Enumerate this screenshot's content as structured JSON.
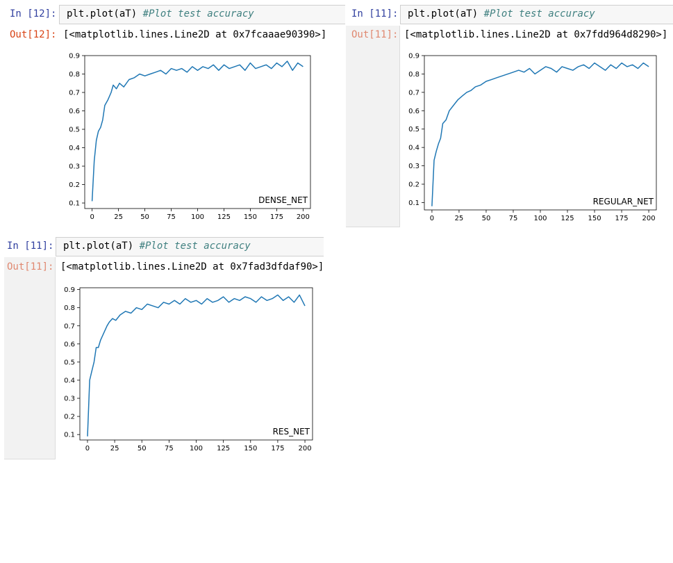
{
  "cells": [
    {
      "in_prompt": "In [12]:",
      "out_prompt": "Out[12]:",
      "out_color": "#d84315",
      "code": "plt.plot(aT) ",
      "comment": "#Plot test accuracy",
      "output": "[<matplotlib.lines.Line2D at 0x7fcaaae90390>]"
    },
    {
      "in_prompt": "In [11]:",
      "out_prompt": "Out[11]:",
      "out_color": "#e08870",
      "code": "plt.plot(aT) ",
      "comment": "#Plot test accuracy",
      "output": "[<matplotlib.lines.Line2D at 0x7fdd964d8290>]"
    },
    {
      "in_prompt": "In [11]:",
      "out_prompt": "Out[11]:",
      "out_color": "#e08870",
      "code": "plt.plot(aT) ",
      "comment": "#Plot test accuracy",
      "output": "[<matplotlib.lines.Line2D at 0x7fad3dfdaf90>]"
    }
  ],
  "chart_data": [
    {
      "type": "line",
      "annotation": "DENSE_NET",
      "line_color": "#1f77b4",
      "xlim": [
        -7,
        207
      ],
      "ylim": [
        0.07,
        0.9
      ],
      "xticks": [
        0,
        25,
        50,
        75,
        100,
        125,
        150,
        175,
        200
      ],
      "yticks": [
        0.1,
        0.2,
        0.3,
        0.4,
        0.5,
        0.6,
        0.7,
        0.8,
        0.9
      ],
      "ytick_labels": [
        "0.1",
        "0.2",
        "0.3",
        "0.4",
        "0.5",
        "0.6",
        "0.7",
        "0.8",
        "0.9"
      ],
      "series": [
        {
          "x": [
            0,
            2,
            4,
            6,
            8,
            10,
            12,
            15,
            18,
            20,
            23,
            26,
            30,
            35,
            40,
            45,
            50,
            55,
            60,
            65,
            70,
            75,
            80,
            85,
            90,
            95,
            100,
            105,
            110,
            115,
            120,
            125,
            130,
            135,
            140,
            145,
            150,
            155,
            160,
            165,
            170,
            175,
            180,
            185,
            190,
            195,
            200
          ],
          "values": [
            0.11,
            0.33,
            0.44,
            0.49,
            0.51,
            0.55,
            0.63,
            0.66,
            0.7,
            0.74,
            0.72,
            0.75,
            0.73,
            0.77,
            0.78,
            0.8,
            0.79,
            0.8,
            0.81,
            0.82,
            0.8,
            0.83,
            0.82,
            0.83,
            0.81,
            0.84,
            0.82,
            0.84,
            0.83,
            0.85,
            0.82,
            0.85,
            0.83,
            0.84,
            0.85,
            0.82,
            0.86,
            0.83,
            0.84,
            0.85,
            0.83,
            0.86,
            0.84,
            0.87,
            0.82,
            0.86,
            0.84
          ]
        }
      ]
    },
    {
      "type": "line",
      "annotation": "REGULAR_NET",
      "line_color": "#1f77b4",
      "xlim": [
        -7,
        207
      ],
      "ylim": [
        0.06,
        0.9
      ],
      "xticks": [
        0,
        25,
        50,
        75,
        100,
        125,
        150,
        175,
        200
      ],
      "yticks": [
        0.1,
        0.2,
        0.3,
        0.4,
        0.5,
        0.6,
        0.7,
        0.8,
        0.9
      ],
      "ytick_labels": [
        "0.1",
        "0.2",
        "0.3",
        "0.4",
        "0.5",
        "0.6",
        "0.7",
        "0.8",
        "0.9"
      ],
      "series": [
        {
          "x": [
            0,
            2,
            4,
            6,
            8,
            10,
            13,
            16,
            20,
            24,
            28,
            32,
            36,
            40,
            45,
            50,
            55,
            60,
            65,
            70,
            75,
            80,
            85,
            90,
            95,
            100,
            105,
            110,
            115,
            120,
            125,
            130,
            135,
            140,
            145,
            150,
            155,
            160,
            165,
            170,
            175,
            180,
            185,
            190,
            195,
            200
          ],
          "values": [
            0.08,
            0.33,
            0.38,
            0.42,
            0.45,
            0.53,
            0.55,
            0.6,
            0.63,
            0.66,
            0.68,
            0.7,
            0.71,
            0.73,
            0.74,
            0.76,
            0.77,
            0.78,
            0.79,
            0.8,
            0.81,
            0.82,
            0.81,
            0.83,
            0.8,
            0.82,
            0.84,
            0.83,
            0.81,
            0.84,
            0.83,
            0.82,
            0.84,
            0.85,
            0.83,
            0.86,
            0.84,
            0.82,
            0.85,
            0.83,
            0.86,
            0.84,
            0.85,
            0.83,
            0.86,
            0.84
          ]
        }
      ]
    },
    {
      "type": "line",
      "annotation": "RES_NET",
      "line_color": "#1f77b4",
      "xlim": [
        -7,
        207
      ],
      "ylim": [
        0.07,
        0.91
      ],
      "xticks": [
        0,
        25,
        50,
        75,
        100,
        125,
        150,
        175,
        200
      ],
      "yticks": [
        0.1,
        0.2,
        0.3,
        0.4,
        0.5,
        0.6,
        0.7,
        0.8,
        0.9
      ],
      "ytick_labels": [
        "0.1",
        "0.2",
        "0.3",
        "0.4",
        "0.5",
        "0.6",
        "0.7",
        "0.8",
        "0.9"
      ],
      "series": [
        {
          "x": [
            0,
            2,
            4,
            6,
            8,
            10,
            12,
            15,
            18,
            20,
            23,
            26,
            30,
            35,
            40,
            45,
            50,
            55,
            60,
            65,
            70,
            75,
            80,
            85,
            90,
            95,
            100,
            105,
            110,
            115,
            120,
            125,
            130,
            135,
            140,
            145,
            150,
            155,
            160,
            165,
            170,
            175,
            180,
            185,
            190,
            195,
            200
          ],
          "values": [
            0.09,
            0.4,
            0.45,
            0.5,
            0.58,
            0.58,
            0.62,
            0.66,
            0.7,
            0.72,
            0.74,
            0.73,
            0.76,
            0.78,
            0.77,
            0.8,
            0.79,
            0.82,
            0.81,
            0.8,
            0.83,
            0.82,
            0.84,
            0.82,
            0.85,
            0.83,
            0.84,
            0.82,
            0.85,
            0.83,
            0.84,
            0.86,
            0.83,
            0.85,
            0.84,
            0.86,
            0.85,
            0.83,
            0.86,
            0.84,
            0.85,
            0.87,
            0.84,
            0.86,
            0.83,
            0.87,
            0.81
          ]
        }
      ]
    }
  ]
}
